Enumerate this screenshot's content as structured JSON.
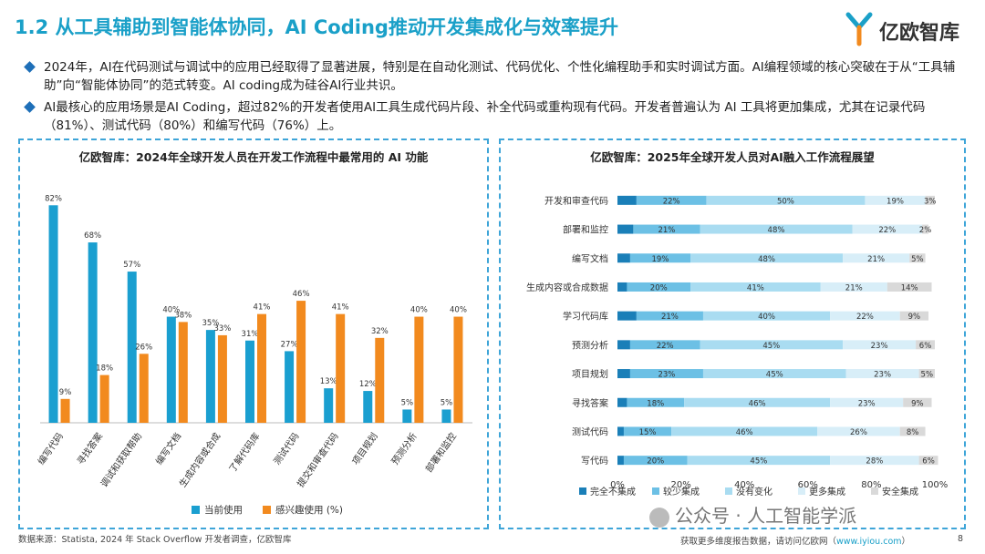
{
  "page": {
    "title": "1.2 从工具辅助到智能体协同，AI Coding推动开发集成化与效率提升",
    "logo_text": "亿欧智库",
    "bullets": [
      "2024年，AI在代码测试与调试中的应用已经取得了显著进展，特别是在自动化测试、代码优化、个性化编程助手和实时调试方面。AI编程领域的核心突破在于从“工具辅助”向“智能体协同”的范式转变。AI coding成为硅谷AI行业共识。",
      "AI最核心的应用场景是AI Coding，超过82%的开发者使用AI工具生成代码片段、补全代码或重构现有代码。开发者普遍认为 AI 工具将更加集成，尤其在记录代码（81%）、测试代码（80%）和编写代码（76%）上。"
    ],
    "source": "数据来源：Statista, 2024 年 Stack Overflow 开发者调查，亿欧智库",
    "footer_text": "获取更多维度报告数据，请访问亿欧网（",
    "footer_link": "www.iyiou.com",
    "footer_end": "）",
    "page_number": "8",
    "watermark": "公众号 · 人工智能学派"
  },
  "chart_data": [
    {
      "type": "bar",
      "title": "亿欧智库：2024年全球开发人员在开发工作流程中最常用的 AI 功能",
      "categories": [
        "编写代码",
        "寻找答案",
        "调试和获取帮助",
        "编写文档",
        "生成内容或合成",
        "了解代码库",
        "测试代码",
        "提交和审查代码",
        "项目规划",
        "预测分析",
        "部署和监控"
      ],
      "series": [
        {
          "name": "当前使用",
          "color": "#1a9fd0",
          "values": [
            82,
            68,
            57,
            40,
            35,
            31,
            27,
            13,
            12,
            5,
            5
          ]
        },
        {
          "name": "感兴趣使用 (%)",
          "color": "#f28a1e",
          "values": [
            9,
            18,
            26,
            38,
            33,
            41,
            46,
            41,
            32,
            40,
            40
          ]
        }
      ],
      "ylim": [
        0,
        90
      ],
      "legend": "bottom"
    },
    {
      "type": "bar",
      "orientation": "horizontal-stacked",
      "title": "亿欧智库：2025年全球开发人员对AI融入工作流程展望",
      "categories": [
        "开发和审查代码",
        "部署和监控",
        "编写文档",
        "生成内容或合成数据",
        "学习代码库",
        "预测分析",
        "项目规划",
        "寻找答案",
        "测试代码",
        "写代码"
      ],
      "series": [
        {
          "name": "完全不集成",
          "color": "#1a7fb8",
          "values": [
            6,
            5,
            4,
            3,
            6,
            4,
            4,
            3,
            2,
            2
          ]
        },
        {
          "name": "较少集成",
          "color": "#6cc0e5",
          "values": [
            22,
            21,
            19,
            20,
            21,
            22,
            23,
            18,
            15,
            20
          ]
        },
        {
          "name": "没有变化",
          "color": "#a9dcf1",
          "values": [
            50,
            48,
            48,
            41,
            40,
            45,
            45,
            46,
            46,
            45
          ]
        },
        {
          "name": "更多集成",
          "color": "#d8eef8",
          "values": [
            19,
            22,
            21,
            21,
            22,
            23,
            23,
            23,
            26,
            28
          ]
        },
        {
          "name": "安全集成",
          "color": "#d9d9d9",
          "values": [
            3,
            2,
            5,
            14,
            9,
            6,
            5,
            9,
            8,
            6
          ]
        }
      ],
      "labeled_series": [
        1,
        2,
        3,
        4
      ],
      "xlim": [
        0,
        100
      ],
      "x_ticks": [
        "0%",
        "20%",
        "40%",
        "60%",
        "80%",
        "100%"
      ],
      "legend": "bottom"
    }
  ]
}
